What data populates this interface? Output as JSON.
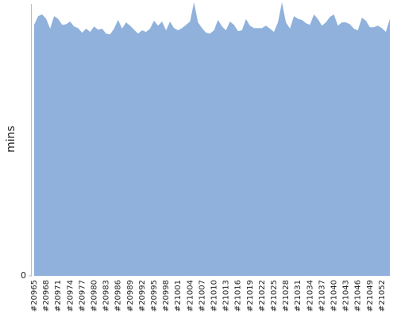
{
  "chart_data": {
    "type": "area",
    "y_label": "mins",
    "color": "#8fb1db",
    "categories": [
      "#20965",
      null,
      null,
      "#20968",
      null,
      null,
      "#20971",
      null,
      null,
      "#20974",
      null,
      null,
      "#20977",
      null,
      null,
      "#20980",
      null,
      null,
      "#20983",
      null,
      null,
      "#20986",
      null,
      null,
      "#20989",
      null,
      null,
      "#20992",
      null,
      null,
      "#20995",
      null,
      null,
      "#20998",
      null,
      null,
      "#21001",
      null,
      null,
      "#21004",
      null,
      null,
      "#21007",
      null,
      null,
      "#21010",
      null,
      null,
      "#21013",
      null,
      null,
      "#21016",
      null,
      null,
      "#21019",
      null,
      null,
      "#21022",
      null,
      null,
      "#21025",
      null,
      null,
      "#21028",
      null,
      null,
      "#21031",
      null,
      null,
      "#21034",
      null,
      null,
      "#21037",
      null,
      null,
      "#21040",
      null,
      null,
      "#21043",
      null,
      null,
      "#21046",
      null,
      null,
      "#21049",
      null,
      null,
      "#21052",
      null,
      null
    ],
    "values": [
      91.8,
      95,
      95.6,
      94,
      90.4,
      95,
      94,
      91.8,
      92,
      93,
      91.2,
      90.6,
      88.9,
      90.4,
      89.2,
      91.2,
      90,
      90.4,
      88.6,
      88.3,
      90.4,
      93.6,
      90.4,
      92.7,
      91.5,
      90,
      88.6,
      89.8,
      89.2,
      90.4,
      93.3,
      91.5,
      93,
      89.8,
      93,
      90.6,
      89.8,
      90.6,
      91.8,
      93,
      100,
      92.7,
      90.6,
      88.9,
      88.6,
      89.8,
      93.6,
      91.2,
      89.8,
      93,
      91.8,
      89.5,
      89.8,
      93.9,
      91.5,
      90.6,
      90.6,
      90.6,
      91.5,
      90.4,
      89.2,
      92.7,
      100,
      92.7,
      90.4,
      95,
      94,
      93.6,
      92.4,
      91.8,
      95.6,
      93.9,
      91.5,
      92.7,
      94.7,
      95.6,
      91.5,
      92.7,
      92.7,
      92,
      90.4,
      89.8,
      94.4,
      93.3,
      90.9,
      90.9,
      91.5,
      90.6,
      89.2,
      94
    ],
    "ylim": [
      0,
      100
    ],
    "yticks": [
      0
    ]
  }
}
